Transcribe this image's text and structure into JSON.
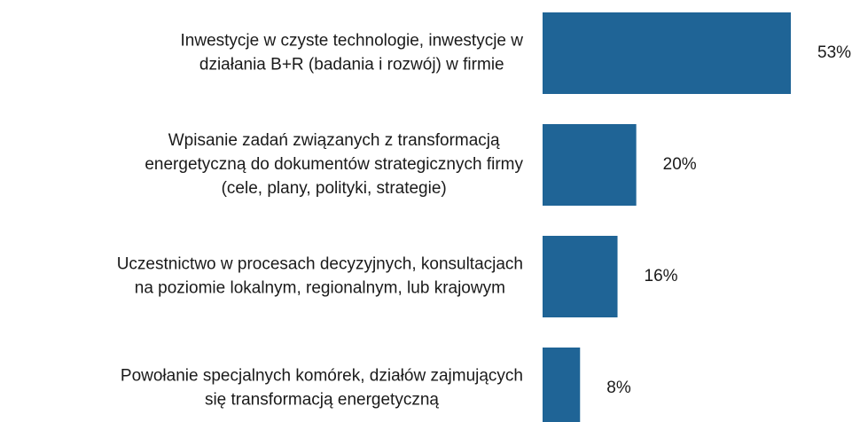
{
  "chart_data": {
    "type": "barh",
    "categories": [
      [
        "Inwestycje w czyste technologie, inwestycje w",
        "działania B+R (badania i rozwój) w firmie"
      ],
      [
        "Wpisanie zadań związanych z transformacją",
        "energetyczną do dokumentów strategicznych firmy",
        "(cele, plany, polityki, strategie)"
      ],
      [
        "Uczestnictwo w procesach decyzyjnych, konsultacjach",
        "na poziomie lokalnym, regionalnym, lub krajowym"
      ],
      [
        "Powołanie specjalnych komórek, działów zajmujących",
        "się transformacją energetyczną"
      ]
    ],
    "values": [
      53,
      20,
      16,
      8
    ],
    "value_labels": [
      "53%",
      "20%",
      "16%",
      "8%"
    ],
    "color": "#1f6496",
    "xlim": [
      0,
      60
    ]
  }
}
